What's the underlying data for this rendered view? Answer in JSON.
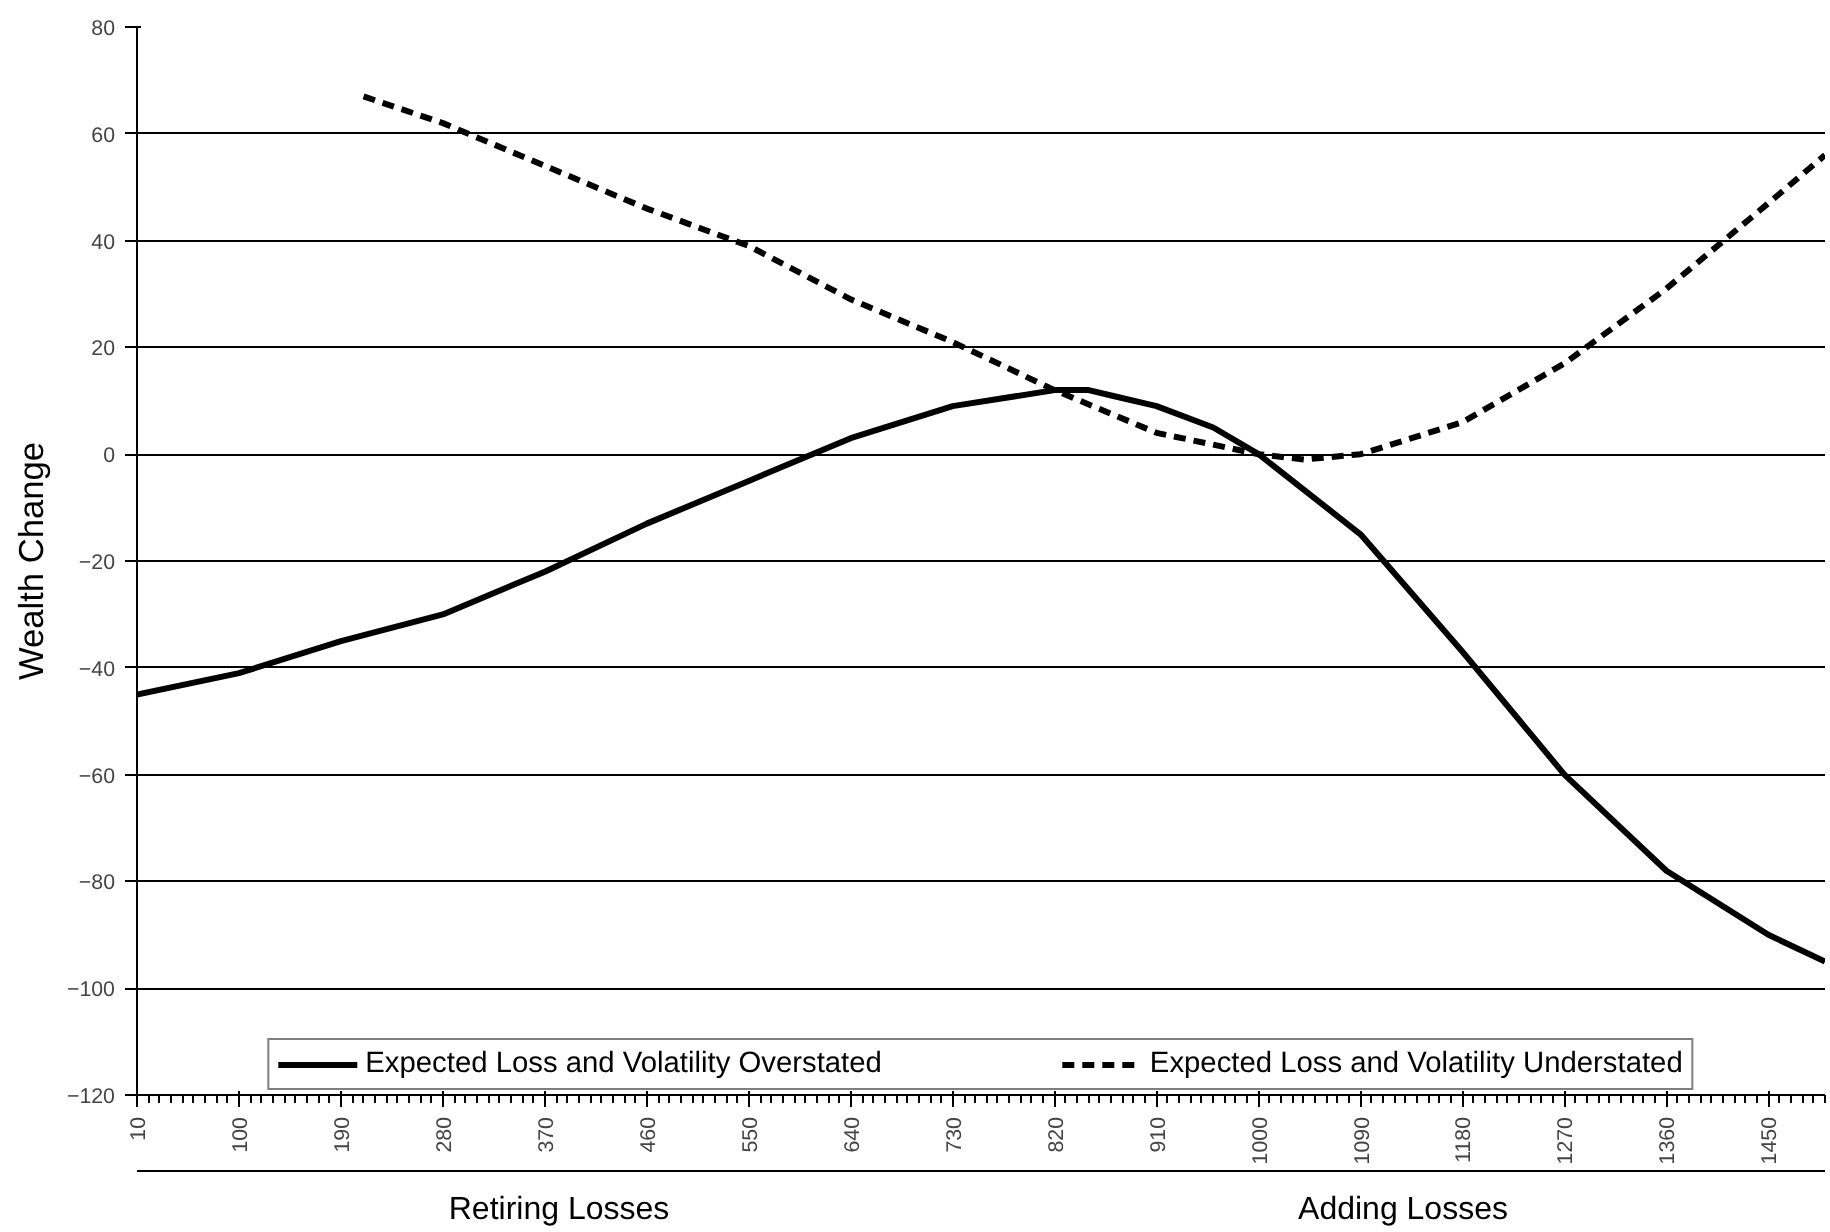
{
  "chart_data": {
    "type": "line",
    "ylabel": "Wealth Change",
    "xlim": [
      10,
      1500
    ],
    "ylim": [
      -120,
      80
    ],
    "xticks": [
      10,
      100,
      190,
      280,
      370,
      460,
      550,
      640,
      730,
      820,
      910,
      1000,
      1090,
      1180,
      1270,
      1360,
      1450
    ],
    "yticks": [
      -120,
      -100,
      -80,
      -60,
      -40,
      -20,
      0,
      20,
      40,
      60,
      80
    ],
    "grid": "y",
    "legend": "bottom",
    "series": [
      {
        "name": "Expected Loss and Volatility Overstated",
        "color": "#000000",
        "line_style": "solid",
        "x": [
          10,
          100,
          190,
          280,
          370,
          460,
          550,
          640,
          730,
          820,
          850,
          870,
          910,
          960,
          1000,
          1090,
          1180,
          1270,
          1360,
          1450,
          1500
        ],
        "values": [
          -45,
          -41,
          -35,
          -30,
          -22,
          -13,
          -5,
          3,
          9,
          12,
          12,
          11,
          9,
          5,
          0,
          -15,
          -37,
          -60,
          -78,
          -90,
          -95
        ]
      },
      {
        "name": "Expected Loss and Volatility Understated",
        "color": "#000000",
        "line_style": "dashed",
        "x": [
          210,
          280,
          370,
          460,
          550,
          640,
          730,
          820,
          910,
          1000,
          1040,
          1090,
          1180,
          1270,
          1360,
          1450,
          1500
        ],
        "values": [
          67,
          62,
          54,
          46,
          39,
          29,
          21,
          12,
          4,
          0,
          -1,
          0,
          6,
          17,
          31,
          47,
          56
        ]
      }
    ],
    "annotations": [
      "Retiring Losses",
      "Adding Losses"
    ]
  }
}
